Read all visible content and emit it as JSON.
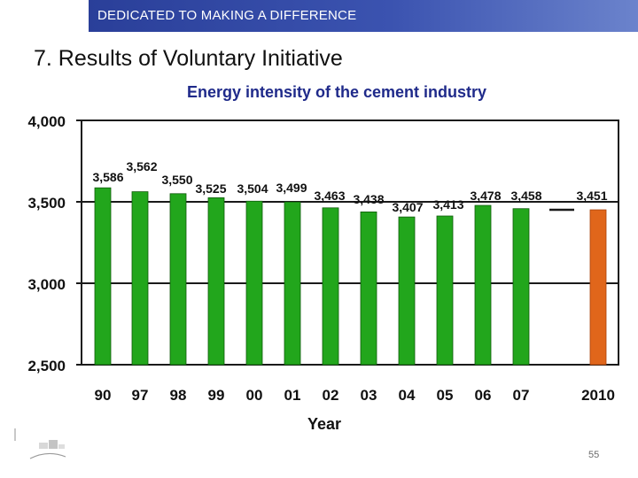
{
  "header": {
    "banner_text": "DEDICATED TO MAKING A DIFFERENCE",
    "slide_title": "7. Results of Voluntary Initiative"
  },
  "footer": {
    "page_number": "55"
  },
  "colors": {
    "banner": "#2a3f99",
    "bar_actual": "#22a61c",
    "bar_target": "#e0661b",
    "plot_border": "#1a1a1a"
  },
  "chart_data": {
    "type": "bar",
    "title": "Energy intensity of the cement industry",
    "xlabel": "Year",
    "ylabel": "",
    "ylim": [
      2500,
      4000
    ],
    "yticks": [
      2500,
      3000,
      3500,
      4000
    ],
    "ytick_labels": [
      "2,500",
      "3,000",
      "3,500",
      "4,000"
    ],
    "grid": true,
    "categories": [
      "90",
      "97",
      "98",
      "99",
      "00",
      "01",
      "02",
      "03",
      "04",
      "05",
      "06",
      "07",
      "2010"
    ],
    "values": [
      3586,
      3562,
      3550,
      3525,
      3504,
      3499,
      3463,
      3438,
      3407,
      3413,
      3478,
      3458,
      3451
    ],
    "value_labels": [
      "3,586",
      "3,562",
      "3,550",
      "3,525",
      "3,504",
      "3,499",
      "3,463",
      "3,438",
      "3,407",
      "3,413",
      "3,478",
      "3,458",
      "3,451"
    ],
    "series_kind": [
      "actual",
      "actual",
      "actual",
      "actual",
      "actual",
      "actual",
      "actual",
      "actual",
      "actual",
      "actual",
      "actual",
      "actual",
      "target"
    ],
    "target_line_value": 3451
  }
}
